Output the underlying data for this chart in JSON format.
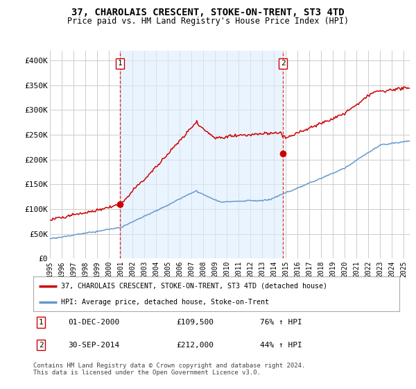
{
  "title": "37, CHAROLAIS CRESCENT, STOKE-ON-TRENT, ST3 4TD",
  "subtitle": "Price paid vs. HM Land Registry's House Price Index (HPI)",
  "ylabel_ticks": [
    "£0",
    "£50K",
    "£100K",
    "£150K",
    "£200K",
    "£250K",
    "£300K",
    "£350K",
    "£400K"
  ],
  "ytick_values": [
    0,
    50000,
    100000,
    150000,
    200000,
    250000,
    300000,
    350000,
    400000
  ],
  "ylim": [
    0,
    420000
  ],
  "xlim_start": 1995.0,
  "xlim_end": 2025.5,
  "sale1_date": 2000.92,
  "sale1_price": 109500,
  "sale2_date": 2014.75,
  "sale2_price": 212000,
  "line1_label": "37, CHAROLAIS CRESCENT, STOKE-ON-TRENT, ST3 4TD (detached house)",
  "line2_label": "HPI: Average price, detached house, Stoke-on-Trent",
  "line1_color": "#cc0000",
  "line2_color": "#6699cc",
  "shade_color": "#ddeeff",
  "vline_color": "#cc0000",
  "footer_text": "Contains HM Land Registry data © Crown copyright and database right 2024.\nThis data is licensed under the Open Government Licence v3.0.",
  "background_color": "#ffffff",
  "grid_color": "#cccccc",
  "xtick_years": [
    1995,
    1996,
    1997,
    1998,
    1999,
    2000,
    2001,
    2002,
    2003,
    2004,
    2005,
    2006,
    2007,
    2008,
    2009,
    2010,
    2011,
    2012,
    2013,
    2014,
    2015,
    2016,
    2017,
    2018,
    2019,
    2020,
    2021,
    2022,
    2023,
    2024,
    2025
  ]
}
